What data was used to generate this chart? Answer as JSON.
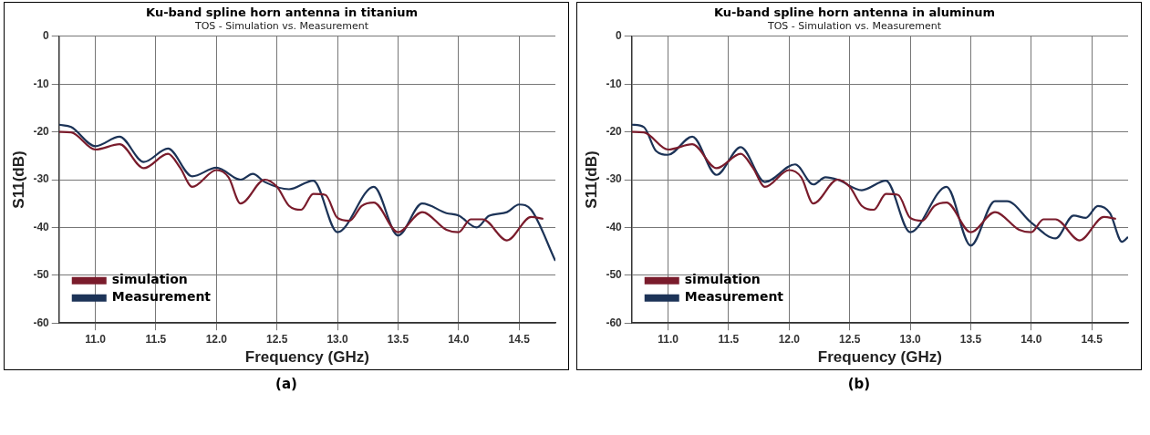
{
  "chart_data": [
    {
      "type": "line",
      "title": "Ku-band spline horn antenna in titanium",
      "subtitle": "TOS - Simulation vs. Measurement",
      "xlabel": "Frequency (GHz)",
      "ylabel": "S11(dB)",
      "xlim": [
        10.7,
        14.8
      ],
      "ylim": [
        -60,
        0
      ],
      "xticks": [
        {
          "value": 11,
          "label": "11.0"
        },
        {
          "value": 11.5,
          "label": "11.5"
        },
        {
          "value": 12,
          "label": "12.0"
        },
        {
          "value": 12.5,
          "label": "12.5"
        },
        {
          "value": 13,
          "label": "13.0"
        },
        {
          "value": 13.5,
          "label": "13.5"
        },
        {
          "value": 14,
          "label": "14.0"
        },
        {
          "value": 14.5,
          "label": "14.5"
        }
      ],
      "yticks": [
        -60,
        -50,
        -40,
        -30,
        -20,
        -10,
        0
      ],
      "grid": true,
      "legend": "bottom left",
      "annotations": [
        "(a)"
      ],
      "series": [
        {
          "name": "simulation",
          "color": "#7a1c2c",
          "x": [
            10.7,
            10.8,
            11.0,
            11.2,
            11.4,
            11.6,
            11.7,
            11.8,
            12.0,
            12.1,
            12.2,
            12.4,
            12.5,
            12.6,
            12.7,
            12.8,
            12.9,
            13.0,
            13.1,
            13.2,
            13.3,
            13.5,
            13.7,
            13.9,
            14.0,
            14.1,
            14.2,
            14.4,
            14.6,
            14.7
          ],
          "values": [
            -20,
            -20.1,
            -23.7,
            -22.6,
            -27.6,
            -24.6,
            -27.5,
            -31.5,
            -28,
            -29.5,
            -35,
            -30,
            -31.5,
            -35.5,
            -36.3,
            -33,
            -33.2,
            -38,
            -38.6,
            -35.5,
            -34.8,
            -41,
            -36.8,
            -40.5,
            -41,
            -38.3,
            -38.3,
            -42.7,
            -37.8,
            -38.2
          ]
        },
        {
          "name": "Measurement",
          "color": "#1c3357",
          "x": [
            10.7,
            10.8,
            11.0,
            11.2,
            11.4,
            11.6,
            11.8,
            12.0,
            12.2,
            12.3,
            12.4,
            12.6,
            12.8,
            13.0,
            13.3,
            13.5,
            13.7,
            13.9,
            14.0,
            14.15,
            14.25,
            14.4,
            14.5,
            14.6,
            14.8
          ],
          "values": [
            -18.5,
            -19,
            -23,
            -21,
            -26.3,
            -23.5,
            -29.3,
            -27.5,
            -30,
            -28.8,
            -30.5,
            -32,
            -30.2,
            -41,
            -31.5,
            -41.7,
            -35,
            -37,
            -37.5,
            -40,
            -37.6,
            -36.8,
            -35.2,
            -36.3,
            -47
          ]
        }
      ]
    },
    {
      "type": "line",
      "title": "Ku-band spline horn antenna in aluminum",
      "subtitle": "TOS - Simulation vs. Measurement",
      "xlabel": "Frequency (GHz)",
      "ylabel": "S11(dB)",
      "xlim": [
        10.7,
        14.8
      ],
      "ylim": [
        -60,
        0
      ],
      "xticks": [
        {
          "value": 11,
          "label": "11.0"
        },
        {
          "value": 11.5,
          "label": "11.5"
        },
        {
          "value": 12,
          "label": "12.0"
        },
        {
          "value": 12.5,
          "label": "12.5"
        },
        {
          "value": 13,
          "label": "13.0"
        },
        {
          "value": 13.5,
          "label": "13.5"
        },
        {
          "value": 14,
          "label": "14.0"
        },
        {
          "value": 14.5,
          "label": "14.5"
        }
      ],
      "yticks": [
        -60,
        -50,
        -40,
        -30,
        -20,
        -10,
        0
      ],
      "grid": true,
      "legend": "bottom left",
      "annotations": [
        "(b)"
      ],
      "series": [
        {
          "name": "simulation",
          "color": "#7a1c2c",
          "x": [
            10.7,
            10.8,
            11.0,
            11.2,
            11.4,
            11.6,
            11.7,
            11.8,
            12.0,
            12.1,
            12.2,
            12.4,
            12.5,
            12.6,
            12.7,
            12.8,
            12.9,
            13.0,
            13.1,
            13.2,
            13.3,
            13.5,
            13.7,
            13.9,
            14.0,
            14.1,
            14.2,
            14.4,
            14.6,
            14.7
          ],
          "values": [
            -20,
            -20.1,
            -23.7,
            -22.6,
            -27.6,
            -24.6,
            -27.5,
            -31.5,
            -28,
            -29.5,
            -35,
            -30,
            -31.5,
            -35.5,
            -36.3,
            -33,
            -33.2,
            -38,
            -38.6,
            -35.5,
            -34.8,
            -41,
            -36.8,
            -40.5,
            -41,
            -38.3,
            -38.3,
            -42.7,
            -37.8,
            -38.2
          ]
        },
        {
          "name": "Measurement",
          "color": "#1c3357",
          "x": [
            10.7,
            10.8,
            10.9,
            11.0,
            11.2,
            11.4,
            11.6,
            11.8,
            12.05,
            12.2,
            12.3,
            12.4,
            12.6,
            12.8,
            13.0,
            13.3,
            13.5,
            13.7,
            13.8,
            14.0,
            14.2,
            14.35,
            14.45,
            14.55,
            14.65,
            14.75,
            14.8
          ],
          "values": [
            -18.5,
            -19,
            -24,
            -24.8,
            -21,
            -29,
            -23.2,
            -30.5,
            -26.8,
            -31,
            -29.5,
            -30,
            -32.2,
            -30.2,
            -41,
            -31.5,
            -43.8,
            -34.5,
            -34.5,
            -39,
            -42.3,
            -37.5,
            -38,
            -35.5,
            -37,
            -43,
            -42
          ]
        }
      ]
    }
  ]
}
